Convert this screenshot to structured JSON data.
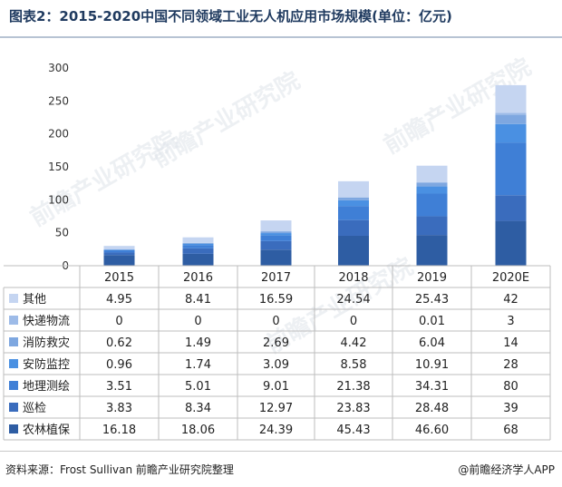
{
  "title": "图表2：2015-2020中国不同领域工业无人机应用市场规模(单位：亿元)",
  "source": "资料来源：Frost Sullivan 前瞻产业研究院整理",
  "brand": "@前瞻经济学人APP",
  "watermark": "前瞻产业研究院",
  "chart_data": {
    "type": "bar",
    "stacked": true,
    "categories": [
      "2015",
      "2016",
      "2017",
      "2018",
      "2019",
      "2020E"
    ],
    "y_ticks": [
      "0",
      "50",
      "100",
      "150",
      "200",
      "250",
      "300"
    ],
    "ylim": [
      0,
      300
    ],
    "series": [
      {
        "name": "农林植保",
        "color": "#2e5da3",
        "values": [
          16.18,
          18.06,
          24.39,
          45.43,
          46.6,
          68
        ],
        "labels": [
          "16.18",
          "18.06",
          "24.39",
          "45.43",
          "46.60",
          "68"
        ]
      },
      {
        "name": "巡检",
        "color": "#3a6cbd",
        "values": [
          3.83,
          8.34,
          12.97,
          23.83,
          28.48,
          39
        ],
        "labels": [
          "3.83",
          "8.34",
          "12.97",
          "23.83",
          "28.48",
          "39"
        ]
      },
      {
        "name": "地理测绘",
        "color": "#3f7fd6",
        "values": [
          3.51,
          5.01,
          9.01,
          21.38,
          34.31,
          80
        ],
        "labels": [
          "3.51",
          "5.01",
          "9.01",
          "21.38",
          "34.31",
          "80"
        ]
      },
      {
        "name": "安防监控",
        "color": "#4a90e2",
        "values": [
          0.96,
          1.74,
          3.09,
          8.58,
          10.91,
          28
        ],
        "labels": [
          "0.96",
          "1.74",
          "3.09",
          "8.58",
          "10.91",
          "28"
        ]
      },
      {
        "name": "消防救灾",
        "color": "#7ea7e0",
        "values": [
          0.62,
          1.49,
          2.69,
          4.42,
          6.04,
          14
        ],
        "labels": [
          "0.62",
          "1.49",
          "2.69",
          "4.42",
          "6.04",
          "14"
        ]
      },
      {
        "name": "快递物流",
        "color": "#9dbbe8",
        "values": [
          0,
          0,
          0,
          0,
          0.01,
          3
        ],
        "labels": [
          "0",
          "0",
          "0",
          "0",
          "0.01",
          "3"
        ]
      },
      {
        "name": "其他",
        "color": "#c5d5f1",
        "values": [
          4.95,
          8.41,
          16.59,
          24.54,
          25.43,
          42
        ],
        "labels": [
          "4.95",
          "8.41",
          "16.59",
          "24.54",
          "25.43",
          "42"
        ]
      }
    ],
    "table_order": [
      "其他",
      "快递物流",
      "消防救灾",
      "安防监控",
      "地理测绘",
      "巡检",
      "农林植保"
    ],
    "grid": false,
    "legend": "left table"
  }
}
